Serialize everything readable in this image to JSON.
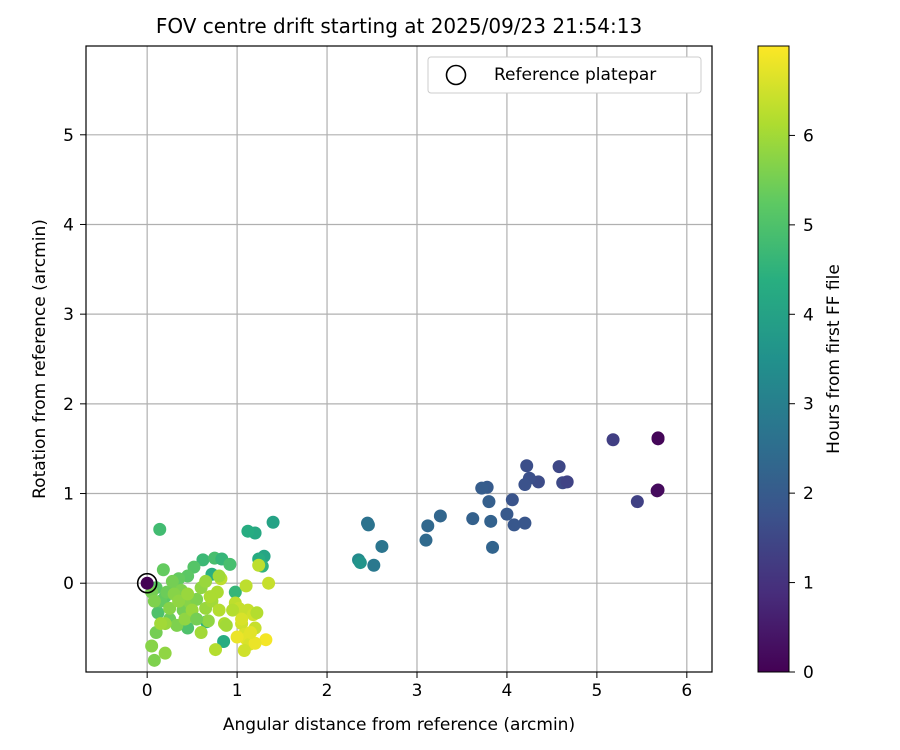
{
  "chart_data": {
    "type": "scatter",
    "title": "FOV centre drift starting at 2025/09/23 21:54:13",
    "xlabel": "Angular distance from reference (arcmin)",
    "ylabel": "Rotation from reference (arcmin)",
    "xlim": [
      -0.68,
      6.28
    ],
    "ylim": [
      -0.99,
      5.99
    ],
    "xticks": [
      0,
      1,
      2,
      3,
      4,
      5,
      6
    ],
    "yticks": [
      0,
      1,
      2,
      3,
      4,
      5
    ],
    "grid": true,
    "legend": {
      "position": "top-right",
      "entries": [
        "Reference platepar"
      ]
    },
    "colorbar": {
      "label": "Hours from first FF file",
      "range": [
        0,
        7
      ],
      "ticks": [
        0,
        1,
        2,
        3,
        4,
        5,
        6
      ],
      "colormap": "viridis"
    },
    "reference_point": {
      "x": 0,
      "y": 0
    },
    "series": [
      {
        "points": [
          [
            5.68,
            1.62,
            0.05
          ],
          [
            5.68,
            1.61,
            0.1
          ],
          [
            5.68,
            1.04,
            0.15
          ],
          [
            5.67,
            1.03,
            0.2
          ],
          [
            5.18,
            1.6,
            1.3
          ],
          [
            5.45,
            0.91,
            1.35
          ],
          [
            4.58,
            1.3,
            1.5
          ],
          [
            4.62,
            1.12,
            1.55
          ],
          [
            4.67,
            1.13,
            1.4
          ],
          [
            4.35,
            1.13,
            1.6
          ],
          [
            4.22,
            1.31,
            1.65
          ],
          [
            4.25,
            1.17,
            1.7
          ],
          [
            4.2,
            1.1,
            1.75
          ],
          [
            4.06,
            0.93,
            1.8
          ],
          [
            4.2,
            0.67,
            1.85
          ],
          [
            4.08,
            0.65,
            1.9
          ],
          [
            4.0,
            0.77,
            1.95
          ],
          [
            3.78,
            1.07,
            2.0
          ],
          [
            3.72,
            1.06,
            2.05
          ],
          [
            3.8,
            0.91,
            2.1
          ],
          [
            3.62,
            0.72,
            2.15
          ],
          [
            3.82,
            0.69,
            2.2
          ],
          [
            3.84,
            0.4,
            2.25
          ],
          [
            3.26,
            0.75,
            2.3
          ],
          [
            3.12,
            0.64,
            2.35
          ],
          [
            3.1,
            0.48,
            2.4
          ],
          [
            2.45,
            0.67,
            2.6
          ],
          [
            2.46,
            0.65,
            2.65
          ],
          [
            2.61,
            0.41,
            2.7
          ],
          [
            2.52,
            0.2,
            2.8
          ],
          [
            2.35,
            0.26,
            3.3
          ],
          [
            2.37,
            0.23,
            3.6
          ],
          [
            1.4,
            0.68,
            4.0
          ],
          [
            1.2,
            0.56,
            4.2
          ],
          [
            1.12,
            0.58,
            4.3
          ],
          [
            1.3,
            0.3,
            4.1
          ],
          [
            1.24,
            0.27,
            4.3
          ],
          [
            1.28,
            0.19,
            4.5
          ],
          [
            0.14,
            0.6,
            4.8
          ],
          [
            0.62,
            0.26,
            4.7
          ],
          [
            0.75,
            0.28,
            4.9
          ],
          [
            0.83,
            0.27,
            4.6
          ],
          [
            0.92,
            0.21,
            4.9
          ],
          [
            0.72,
            0.1,
            4.4
          ],
          [
            0.85,
            -0.65,
            4.3
          ],
          [
            0.98,
            -0.1,
            4.6
          ],
          [
            0.66,
            -0.43,
            4.5
          ],
          [
            0.45,
            -0.5,
            5.0
          ],
          [
            0.52,
            0.18,
            5.1
          ],
          [
            0.45,
            0.08,
            5.2
          ],
          [
            0.35,
            0.05,
            5.3
          ],
          [
            0.3,
            -0.06,
            5.4
          ],
          [
            0.2,
            -0.15,
            5.2
          ],
          [
            0.12,
            -0.33,
            5.0
          ],
          [
            0.1,
            -0.55,
            5.5
          ],
          [
            0.05,
            -0.7,
            5.7
          ],
          [
            0.08,
            -0.86,
            5.6
          ],
          [
            0.2,
            -0.78,
            5.8
          ],
          [
            0.18,
            0.15,
            5.3
          ],
          [
            0.25,
            -0.4,
            5.4
          ],
          [
            0.33,
            -0.47,
            5.6
          ],
          [
            0.4,
            -0.3,
            5.5
          ],
          [
            0.15,
            -0.2,
            5.3
          ],
          [
            0.1,
            -0.05,
            5.2
          ],
          [
            0.22,
            -0.1,
            5.4
          ],
          [
            0.28,
            0.02,
            5.5
          ],
          [
            0.38,
            -0.08,
            5.6
          ],
          [
            0.48,
            -0.22,
            5.7
          ],
          [
            0.55,
            -0.18,
            5.6
          ],
          [
            0.6,
            -0.05,
            5.8
          ],
          [
            0.65,
            -0.28,
            5.9
          ],
          [
            0.68,
            -0.42,
            5.8
          ],
          [
            0.6,
            -0.55,
            6.0
          ],
          [
            0.72,
            -0.2,
            6.0
          ],
          [
            0.78,
            -0.1,
            6.1
          ],
          [
            0.8,
            -0.3,
            6.2
          ],
          [
            0.86,
            -0.45,
            6.1
          ],
          [
            0.82,
            0.05,
            6.3
          ],
          [
            0.76,
            -0.74,
            6.2
          ],
          [
            0.2,
            -0.45,
            5.9
          ],
          [
            0.3,
            -0.12,
            5.7
          ],
          [
            0.42,
            -0.4,
            5.8
          ],
          [
            0.5,
            -0.3,
            5.9
          ],
          [
            0.15,
            -0.45,
            6.0
          ],
          [
            0.98,
            -0.22,
            6.3
          ],
          [
            1.02,
            -0.28,
            6.4
          ],
          [
            1.05,
            -0.45,
            6.5
          ],
          [
            1.08,
            -0.57,
            6.6
          ],
          [
            1.1,
            -0.62,
            6.7
          ],
          [
            1.14,
            -0.68,
            6.6
          ],
          [
            1.08,
            -0.75,
            6.5
          ],
          [
            1.12,
            -0.3,
            6.4
          ],
          [
            1.18,
            -0.35,
            6.5
          ],
          [
            1.22,
            -0.33,
            6.2
          ],
          [
            1.2,
            -0.5,
            6.4
          ],
          [
            1.32,
            -0.63,
            6.9
          ],
          [
            1.2,
            -0.67,
            6.8
          ],
          [
            1.15,
            -0.55,
            6.7
          ],
          [
            1.24,
            0.2,
            6.3
          ],
          [
            1.35,
            0.0,
            6.4
          ],
          [
            1.1,
            -0.03,
            6.3
          ],
          [
            0.88,
            -0.47,
            6.0
          ],
          [
            0.95,
            -0.3,
            6.2
          ],
          [
            1.05,
            -0.4,
            6.6
          ],
          [
            1.0,
            -0.6,
            6.8
          ],
          [
            0.7,
            -0.15,
            6.1
          ],
          [
            0.8,
            0.08,
            6.0
          ],
          [
            0.65,
            0.02,
            5.9
          ],
          [
            0.05,
            -0.1,
            5.5
          ],
          [
            0.08,
            -0.2,
            5.6
          ],
          [
            0.25,
            -0.28,
            5.7
          ],
          [
            0.35,
            -0.2,
            5.8
          ],
          [
            0.45,
            -0.12,
            5.9
          ],
          [
            0.55,
            -0.4,
            5.5
          ]
        ]
      }
    ]
  }
}
